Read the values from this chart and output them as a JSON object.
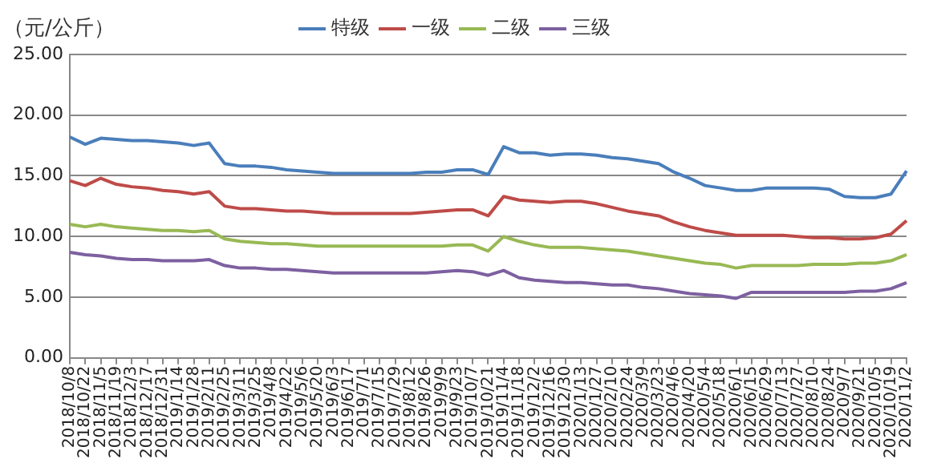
{
  "chart_data": {
    "type": "line",
    "ylabel": "（元/公斤）",
    "categories": [
      "2018/10/8",
      "2018/10/22",
      "2018/11/5",
      "2018/11/19",
      "2018/12/3",
      "2018/12/17",
      "2018/12/31",
      "2019/1/14",
      "2019/1/28",
      "2019/2/11",
      "2019/2/25",
      "2019/3/11",
      "2019/3/25",
      "2019/4/8",
      "2019/4/22",
      "2019/5/6",
      "2019/5/20",
      "2019/6/3",
      "2019/6/17",
      "2019/7/1",
      "2019/7/15",
      "2019/7/29",
      "2019/8/12",
      "2019/8/26",
      "2019/9/9",
      "2019/9/23",
      "2019/10/7",
      "2019/10/21",
      "2019/11/4",
      "2019/11/18",
      "2019/12/2",
      "2019/12/16",
      "2019/12/30",
      "2020/1/13",
      "2020/1/27",
      "2020/2/10",
      "2020/2/24",
      "2020/3/9",
      "2020/3/23",
      "2020/4/6",
      "2020/4/20",
      "2020/5/4",
      "2020/5/18",
      "2020/6/1",
      "2020/6/15",
      "2020/6/29",
      "2020/7/13",
      "2020/7/27",
      "2020/8/10",
      "2020/8/24",
      "2020/9/7",
      "2020/9/21",
      "2020/10/5",
      "2020/10/19",
      "2020/11/2"
    ],
    "series": [
      {
        "name": "特级",
        "color": "#4a7ebb",
        "values": [
          18.2,
          17.6,
          18.1,
          18.0,
          17.9,
          17.9,
          17.8,
          17.7,
          17.5,
          17.7,
          16.0,
          15.8,
          15.8,
          15.7,
          15.5,
          15.4,
          15.3,
          15.2,
          15.2,
          15.2,
          15.2,
          15.2,
          15.2,
          15.3,
          15.3,
          15.5,
          15.5,
          15.1,
          17.4,
          16.9,
          16.9,
          16.7,
          16.8,
          16.8,
          16.7,
          16.5,
          16.4,
          16.2,
          16.0,
          15.3,
          14.8,
          14.2,
          14.0,
          13.8,
          13.8,
          14.0,
          14.0,
          14.0,
          14.0,
          13.9,
          13.3,
          13.2,
          13.2,
          13.5,
          15.4
        ]
      },
      {
        "name": "一级",
        "color": "#be4b48",
        "values": [
          14.6,
          14.2,
          14.8,
          14.3,
          14.1,
          14.0,
          13.8,
          13.7,
          13.5,
          13.7,
          12.5,
          12.3,
          12.3,
          12.2,
          12.1,
          12.1,
          12.0,
          11.9,
          11.9,
          11.9,
          11.9,
          11.9,
          11.9,
          12.0,
          12.1,
          12.2,
          12.2,
          11.7,
          13.3,
          13.0,
          12.9,
          12.8,
          12.9,
          12.9,
          12.7,
          12.4,
          12.1,
          11.9,
          11.7,
          11.2,
          10.8,
          10.5,
          10.3,
          10.1,
          10.1,
          10.1,
          10.1,
          10.0,
          9.9,
          9.9,
          9.8,
          9.8,
          9.9,
          10.2,
          11.3
        ]
      },
      {
        "name": "二级",
        "color": "#98b954",
        "values": [
          11.0,
          10.8,
          11.0,
          10.8,
          10.7,
          10.6,
          10.5,
          10.5,
          10.4,
          10.5,
          9.8,
          9.6,
          9.5,
          9.4,
          9.4,
          9.3,
          9.2,
          9.2,
          9.2,
          9.2,
          9.2,
          9.2,
          9.2,
          9.2,
          9.2,
          9.3,
          9.3,
          8.8,
          10.0,
          9.6,
          9.3,
          9.1,
          9.1,
          9.1,
          9.0,
          8.9,
          8.8,
          8.6,
          8.4,
          8.2,
          8.0,
          7.8,
          7.7,
          7.4,
          7.6,
          7.6,
          7.6,
          7.6,
          7.7,
          7.7,
          7.7,
          7.8,
          7.8,
          8.0,
          8.5
        ]
      },
      {
        "name": "三级",
        "color": "#7d60a0",
        "values": [
          8.7,
          8.5,
          8.4,
          8.2,
          8.1,
          8.1,
          8.0,
          8.0,
          8.0,
          8.1,
          7.6,
          7.4,
          7.4,
          7.3,
          7.3,
          7.2,
          7.1,
          7.0,
          7.0,
          7.0,
          7.0,
          7.0,
          7.0,
          7.0,
          7.1,
          7.2,
          7.1,
          6.8,
          7.2,
          6.6,
          6.4,
          6.3,
          6.2,
          6.2,
          6.1,
          6.0,
          6.0,
          5.8,
          5.7,
          5.5,
          5.3,
          5.2,
          5.1,
          4.9,
          5.4,
          5.4,
          5.4,
          5.4,
          5.4,
          5.4,
          5.4,
          5.5,
          5.5,
          5.7,
          6.2
        ]
      }
    ],
    "ylim": [
      0,
      25
    ],
    "yticks": [
      {
        "value": 0,
        "label": "0.00"
      },
      {
        "value": 5,
        "label": "5.00"
      },
      {
        "value": 10,
        "label": "10.00"
      },
      {
        "value": 15,
        "label": "15.00"
      },
      {
        "value": 20,
        "label": "20.00"
      },
      {
        "value": 25,
        "label": "25.00"
      }
    ],
    "grid": "y",
    "legend": "top",
    "marker": "none",
    "line_style": "solid"
  }
}
